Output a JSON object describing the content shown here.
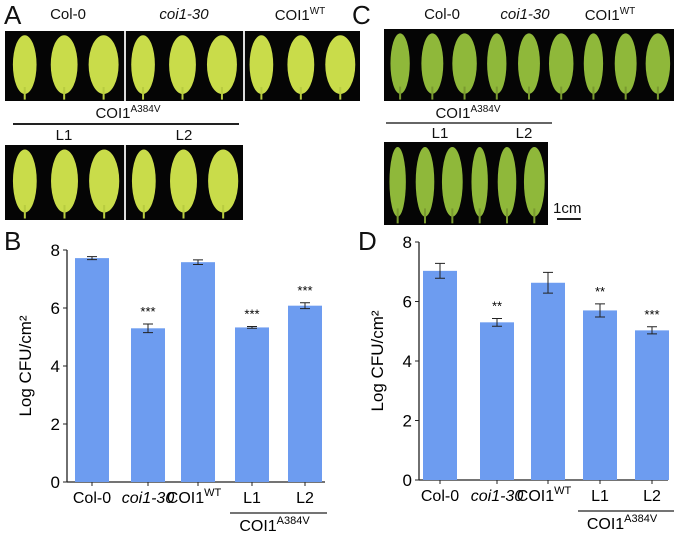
{
  "panels": {
    "a": "A",
    "b": "B",
    "c": "C",
    "d": "D"
  },
  "genotypes": {
    "col0": "Col-0",
    "coi1": "coi1-30",
    "wt_base": "COI1",
    "wt_sup": "WT",
    "mut_base": "COI1",
    "mut_sup": "A384V",
    "l1": "L1",
    "l2": "L2"
  },
  "scale_bar": "1cm",
  "colors": {
    "bar": "#6d9cf0",
    "leaf_light": "#c9dc4a",
    "leaf_dark": "#8fb83a"
  },
  "chart_data": [
    {
      "type": "bar",
      "panel": "B",
      "ylabel": "Log CFU/cm²",
      "ylim": [
        0,
        8
      ],
      "yticks": [
        0,
        2,
        4,
        6,
        8
      ],
      "categories": [
        "Col-0",
        "coi1-30",
        "COI1WT",
        "L1",
        "L2"
      ],
      "values": [
        7.72,
        5.3,
        7.58,
        5.33,
        6.08
      ],
      "errors": [
        0.05,
        0.15,
        0.08,
        0.03,
        0.1
      ],
      "significance": [
        "",
        "***",
        "",
        "***",
        "***"
      ],
      "group_label": "COI1A384V"
    },
    {
      "type": "bar",
      "panel": "D",
      "ylabel": "Log CFU/cm²",
      "ylim": [
        0,
        8
      ],
      "yticks": [
        0,
        2,
        4,
        6,
        8
      ],
      "categories": [
        "Col-0",
        "coi1-30",
        "COI1WT",
        "L1",
        "L2"
      ],
      "values": [
        7.03,
        5.3,
        6.63,
        5.7,
        5.03
      ],
      "errors": [
        0.25,
        0.13,
        0.35,
        0.22,
        0.12
      ],
      "significance": [
        "",
        "**",
        "",
        "**",
        "***"
      ],
      "group_label": "COI1A384V"
    }
  ]
}
